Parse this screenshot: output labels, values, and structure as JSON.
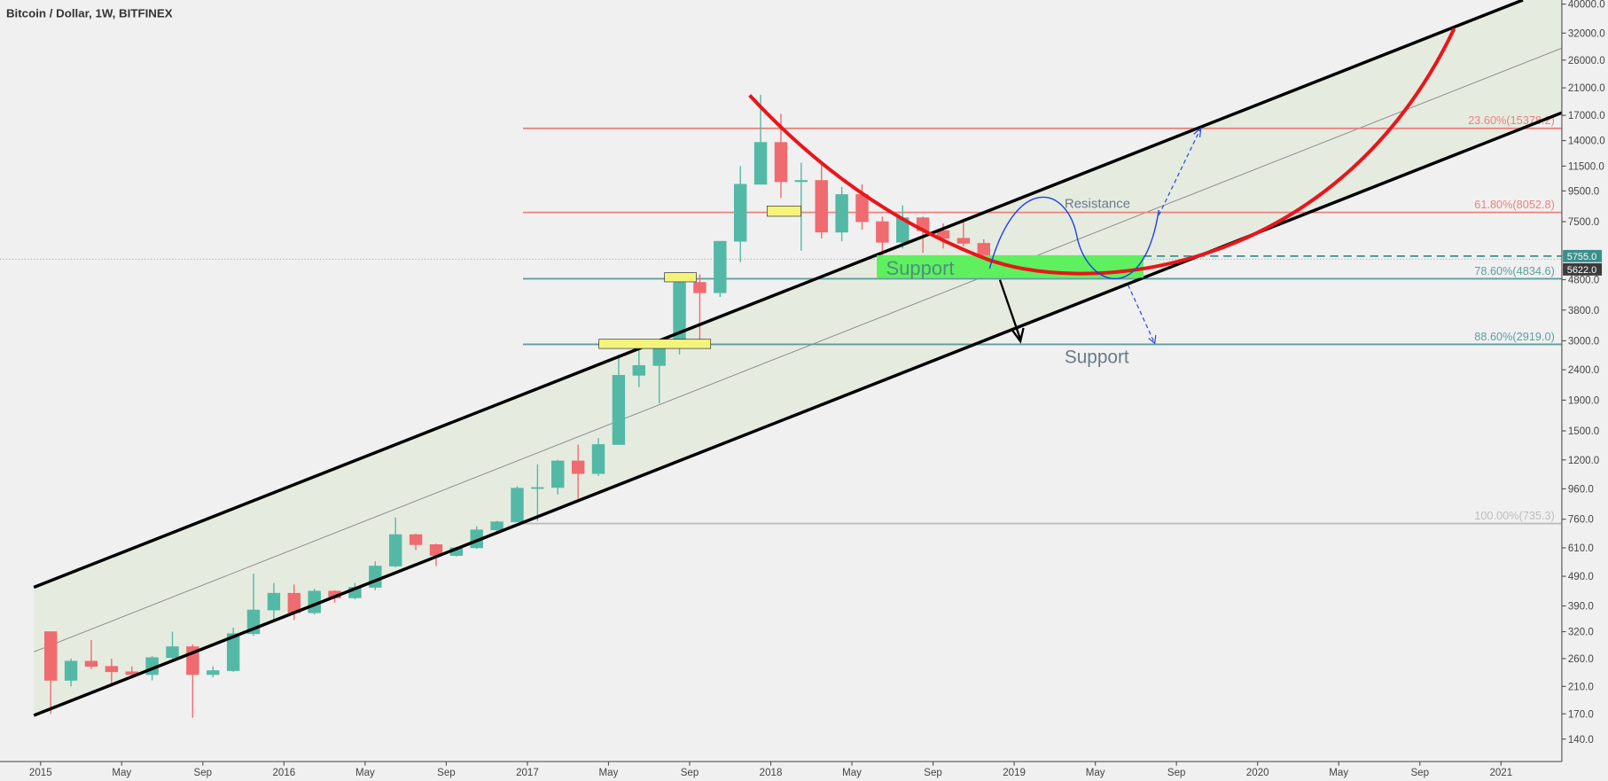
{
  "chart_data": {
    "type": "candlestick",
    "title": "Bitcoin / Dollar, 1W, BITFINEX",
    "log_scale": true,
    "up_color": "#53b9a6",
    "down_color": "#ef6b6f",
    "x": [
      "2015-01",
      "2015-02",
      "2015-03",
      "2015-04",
      "2015-05",
      "2015-06",
      "2015-07",
      "2015-08",
      "2015-09",
      "2015-10",
      "2015-11",
      "2015-12",
      "2016-01",
      "2016-02",
      "2016-03",
      "2016-04",
      "2016-05",
      "2016-06",
      "2016-07",
      "2016-08",
      "2016-09",
      "2016-10",
      "2016-11",
      "2016-12",
      "2017-01",
      "2017-02",
      "2017-03",
      "2017-04",
      "2017-05",
      "2017-06",
      "2017-07",
      "2017-08",
      "2017-09",
      "2017-10",
      "2017-11",
      "2017-12",
      "2018-01",
      "2018-02",
      "2018-03",
      "2018-04",
      "2018-05",
      "2018-06",
      "2018-07",
      "2018-08",
      "2018-09",
      "2018-10",
      "2018-11"
    ],
    "open": [
      320,
      220,
      255,
      245,
      235,
      230,
      262,
      285,
      230,
      237,
      315,
      378,
      430,
      370,
      437,
      415,
      450,
      530,
      675,
      625,
      575,
      610,
      700,
      745,
      965,
      970,
      1190,
      1080,
      1350,
      2300,
      2480,
      2870,
      4700,
      4340,
      6450,
      10000,
      13800,
      10200,
      10300,
      6920,
      9240,
      7500,
      6400,
      7730,
      7000,
      6600,
      6350
    ],
    "high": [
      320,
      260,
      300,
      260,
      245,
      265,
      320,
      290,
      245,
      330,
      500,
      465,
      460,
      445,
      440,
      465,
      550,
      770,
      680,
      630,
      615,
      720,
      750,
      980,
      1160,
      1200,
      1350,
      1420,
      2700,
      3000,
      2900,
      4800,
      5000,
      6450,
      11500,
      19900,
      17200,
      11800,
      11700,
      9800,
      10000,
      7800,
      8500,
      7800,
      7400,
      7680,
      6550
    ],
    "low": [
      170,
      210,
      240,
      210,
      225,
      220,
      255,
      165,
      225,
      235,
      310,
      350,
      350,
      365,
      400,
      410,
      440,
      525,
      600,
      530,
      570,
      605,
      680,
      745,
      750,
      920,
      890,
      1060,
      1350,
      2100,
      1850,
      2700,
      2900,
      4200,
      5500,
      10000,
      9000,
      6000,
      6600,
      6450,
      7050,
      5750,
      6100,
      5900,
      6100,
      6200,
      5600
    ],
    "close": [
      220,
      255,
      245,
      235,
      230,
      262,
      285,
      230,
      237,
      315,
      378,
      430,
      370,
      437,
      415,
      450,
      530,
      675,
      625,
      575,
      610,
      700,
      745,
      965,
      970,
      1190,
      1080,
      1350,
      2300,
      2480,
      2870,
      4700,
      4340,
      6450,
      10000,
      13800,
      10200,
      10300,
      6920,
      9240,
      7500,
      6400,
      7730,
      7000,
      6600,
      6350,
      5622
    ],
    "xlim": [
      "2014-11",
      "2021-04"
    ],
    "xticks": [
      {
        "value": "2015-01",
        "label": "2015"
      },
      {
        "value": "2015-05",
        "label": "May"
      },
      {
        "value": "2015-09",
        "label": "Sep"
      },
      {
        "value": "2016-01",
        "label": "2016"
      },
      {
        "value": "2016-05",
        "label": "May"
      },
      {
        "value": "2016-09",
        "label": "Sep"
      },
      {
        "value": "2017-01",
        "label": "2017"
      },
      {
        "value": "2017-05",
        "label": "May"
      },
      {
        "value": "2017-09",
        "label": "Sep"
      },
      {
        "value": "2018-01",
        "label": "2018"
      },
      {
        "value": "2018-05",
        "label": "May"
      },
      {
        "value": "2018-09",
        "label": "Sep"
      },
      {
        "value": "2019-01",
        "label": "2019"
      },
      {
        "value": "2019-05",
        "label": "May"
      },
      {
        "value": "2019-09",
        "label": "Sep"
      },
      {
        "value": "2020-01",
        "label": "2020"
      },
      {
        "value": "2020-05",
        "label": "May"
      },
      {
        "value": "2020-09",
        "label": "Sep"
      },
      {
        "value": "2021-01",
        "label": "2021"
      }
    ],
    "ylim": [
      117.8,
      41282
    ],
    "yticks": [
      {
        "value": 140,
        "label": "140.0"
      },
      {
        "value": 170,
        "label": "170.0"
      },
      {
        "value": 210,
        "label": "210.0"
      },
      {
        "value": 260,
        "label": "260.0"
      },
      {
        "value": 320,
        "label": "320.0"
      },
      {
        "value": 390,
        "label": "390.0"
      },
      {
        "value": 490,
        "label": "490.0"
      },
      {
        "value": 610,
        "label": "610.0"
      },
      {
        "value": 760,
        "label": "760.0"
      },
      {
        "value": 960,
        "label": "960.0"
      },
      {
        "value": 1200,
        "label": "1200.0"
      },
      {
        "value": 1500,
        "label": "1500.0"
      },
      {
        "value": 1900,
        "label": "1900.0"
      },
      {
        "value": 2400,
        "label": "2400.0"
      },
      {
        "value": 3000,
        "label": "3000.0"
      },
      {
        "value": 3800,
        "label": "3800.0"
      },
      {
        "value": 4800,
        "label": "4800.0"
      },
      {
        "value": 7500,
        "label": "7500.0"
      },
      {
        "value": 9500,
        "label": "9500.0"
      },
      {
        "value": 11500,
        "label": "11500.0"
      },
      {
        "value": 14000,
        "label": "14000.0"
      },
      {
        "value": 17000,
        "label": "17000.0"
      },
      {
        "value": 21000,
        "label": "21000.0"
      },
      {
        "value": 26000,
        "label": "26000.0"
      },
      {
        "value": 32000,
        "label": "32000.0"
      },
      {
        "value": 40000,
        "label": "40000.0"
      }
    ],
    "fib_levels": [
      {
        "value": 15378.2,
        "label": "23.60%(15378.2)",
        "color": "#e8837c"
      },
      {
        "value": 8052.8,
        "label": "61.80%(8052.8)",
        "color": "#e8837c"
      },
      {
        "value": 4834.6,
        "label": "78.60%(4834.6)",
        "color": "#5f9ea0"
      },
      {
        "value": 2919.0,
        "label": "88.60%(2919.0)",
        "color": "#5f9ea0"
      },
      {
        "value": 735.3,
        "label": "100.00%(735.3)",
        "color": "#bdbdbd"
      }
    ],
    "price_labels": [
      {
        "value": 5755,
        "label": "5755.0",
        "color": "#3a8f8c"
      },
      {
        "value": 5622,
        "label": "5622.0",
        "color": "#3b3b3b"
      }
    ],
    "annotations": [
      "Support",
      "Resistance",
      "Support"
    ]
  }
}
